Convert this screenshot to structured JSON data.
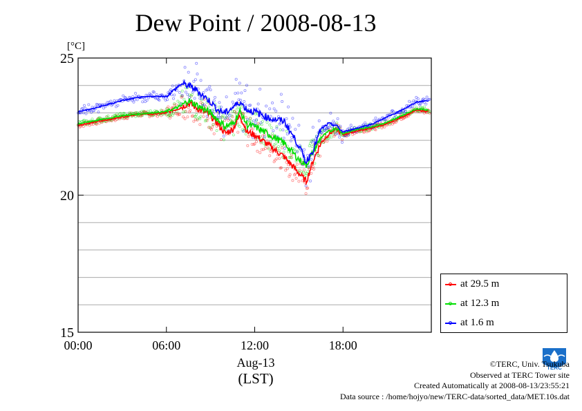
{
  "chart_data": {
    "type": "line",
    "title": "Dew Point / 2008-08-13",
    "ylabel": "[°C]",
    "xlabel": "Aug-13",
    "xlabel2": "(LST)",
    "ylim": [
      15,
      25
    ],
    "xlim_hours": [
      0,
      24
    ],
    "y_ticks": [
      "15",
      "20",
      "25"
    ],
    "x_ticks": [
      "00:00",
      "06:00",
      "12:00",
      "18:00"
    ],
    "grid": true,
    "legend_position": "right",
    "series": [
      {
        "name": "at 29.5 m",
        "color": "#ff0000",
        "x": [
          "00:00",
          "01:00",
          "02:00",
          "03:00",
          "04:00",
          "05:00",
          "06:00",
          "07:00",
          "07:30",
          "08:00",
          "09:00",
          "09:30",
          "10:00",
          "10:30",
          "11:00",
          "11:30",
          "12:00",
          "13:00",
          "14:00",
          "15:00",
          "15:30",
          "16:00",
          "16:30",
          "17:00",
          "17:30",
          "18:00",
          "19:00",
          "20:00",
          "21:00",
          "22:00",
          "23:00",
          "23:50"
        ],
        "values": [
          22.55,
          22.65,
          22.75,
          22.85,
          22.95,
          22.95,
          23.0,
          23.2,
          23.35,
          23.2,
          22.9,
          22.6,
          22.25,
          22.4,
          22.9,
          22.3,
          22.2,
          21.8,
          21.4,
          20.8,
          20.5,
          21.3,
          21.9,
          22.2,
          22.4,
          22.2,
          22.35,
          22.45,
          22.6,
          22.85,
          23.1,
          23.05
        ]
      },
      {
        "name": "at 12.3 m",
        "color": "#00dd00",
        "x": [
          "00:00",
          "01:00",
          "02:00",
          "03:00",
          "04:00",
          "05:00",
          "06:00",
          "07:00",
          "07:30",
          "08:00",
          "09:00",
          "09:30",
          "10:00",
          "10:30",
          "11:00",
          "11:30",
          "12:00",
          "13:00",
          "14:00",
          "15:00",
          "15:30",
          "16:00",
          "16:30",
          "17:00",
          "17:30",
          "18:00",
          "19:00",
          "20:00",
          "21:00",
          "22:00",
          "23:00",
          "23:50"
        ],
        "values": [
          22.6,
          22.7,
          22.8,
          22.9,
          22.95,
          23.0,
          23.05,
          23.25,
          23.45,
          23.3,
          23.0,
          22.75,
          22.5,
          22.6,
          23.05,
          22.55,
          22.5,
          22.2,
          21.9,
          21.3,
          21.1,
          21.6,
          22.1,
          22.3,
          22.45,
          22.25,
          22.4,
          22.5,
          22.65,
          22.9,
          23.15,
          23.1
        ]
      },
      {
        "name": "at 1.6 m",
        "color": "#0000ff",
        "x": [
          "00:00",
          "01:00",
          "02:00",
          "03:00",
          "04:00",
          "05:00",
          "06:00",
          "07:00",
          "07:30",
          "08:00",
          "09:00",
          "09:30",
          "10:00",
          "10:30",
          "11:00",
          "11:30",
          "12:00",
          "13:00",
          "14:00",
          "15:00",
          "15:30",
          "16:00",
          "16:30",
          "17:00",
          "17:30",
          "18:00",
          "19:00",
          "20:00",
          "21:00",
          "22:00",
          "23:00",
          "23:50"
        ],
        "values": [
          23.05,
          23.15,
          23.3,
          23.45,
          23.55,
          23.6,
          23.6,
          24.05,
          24.0,
          23.85,
          23.4,
          23.1,
          23.0,
          23.2,
          23.4,
          23.1,
          23.05,
          22.8,
          22.7,
          21.8,
          21.2,
          21.7,
          22.4,
          22.6,
          22.55,
          22.3,
          22.45,
          22.6,
          22.85,
          23.1,
          23.4,
          23.45
        ]
      }
    ]
  },
  "credits": {
    "copyright": "©TERC, Univ. Tsukuba",
    "observed": "Observed at TERC Tower site",
    "created": "Created Automatically at 2008-08-13/23:55:21",
    "source": "Data source : /home/hojyo/new/TERC-data/sorted_data/MET.10s.dat"
  },
  "logo_text": "TERC",
  "colors": {
    "red": "#ff0000",
    "green": "#00dd00",
    "blue": "#0000ff",
    "grid": "#aaaaaa"
  }
}
